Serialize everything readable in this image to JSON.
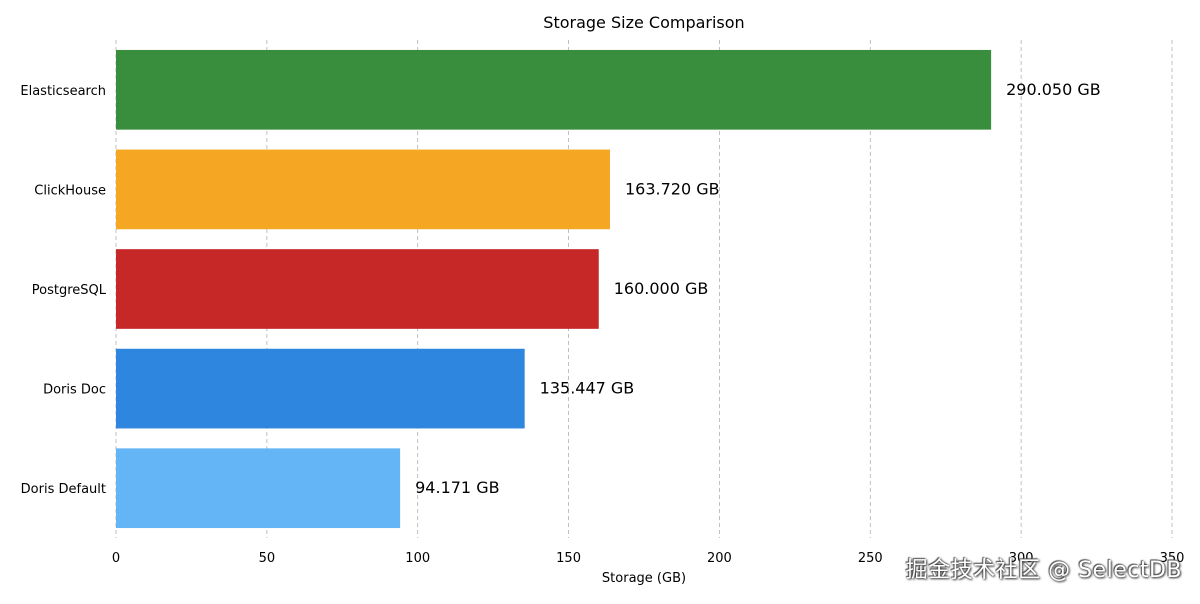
{
  "chart_data": {
    "type": "bar",
    "orientation": "horizontal",
    "title": "Storage Size Comparison",
    "xlabel": "Storage (GB)",
    "ylabel": "",
    "xlim": [
      0,
      350
    ],
    "xticks": [
      "0",
      "50",
      "100",
      "150",
      "200",
      "250",
      "300",
      "350"
    ],
    "grid": "vertical dashed",
    "categories": [
      "Elasticsearch",
      "ClickHouse",
      "PostgreSQL",
      "Doris Doc",
      "Doris Default"
    ],
    "values": [
      290.05,
      163.72,
      160.0,
      135.447,
      94.171
    ],
    "data_labels": [
      "290.050 GB",
      "163.720 GB",
      "160.000 GB",
      "135.447 GB",
      "94.171 GB"
    ],
    "colors": [
      "#388e3c",
      "#f5a623",
      "#c62828",
      "#2e86de",
      "#64b5f6"
    ]
  },
  "watermark": {
    "text": "掘金技术社区 @ SelectDB"
  }
}
